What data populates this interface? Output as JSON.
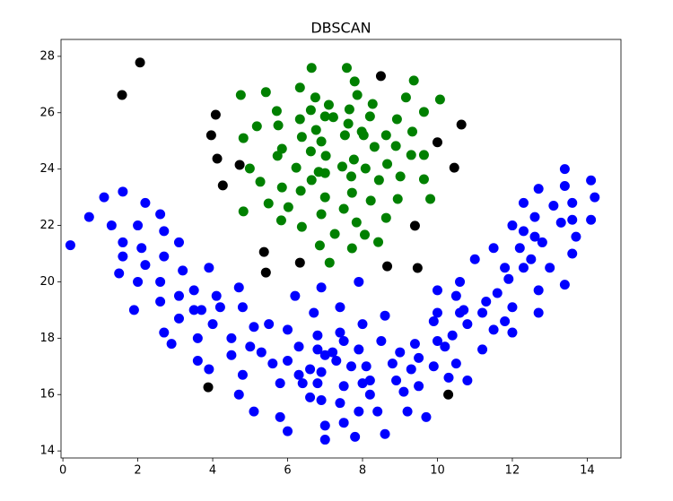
{
  "chart_data": {
    "type": "scatter",
    "title": "DBSCAN",
    "xlim": [
      -0.05,
      14.9
    ],
    "xticks": [
      0,
      2,
      4,
      6,
      8,
      10,
      12,
      14
    ],
    "ylim": [
      13.75,
      28.6
    ],
    "yticks": [
      14,
      16,
      18,
      20,
      22,
      24,
      26,
      28
    ],
    "grid": false,
    "series": [
      {
        "color": "#0000ff",
        "x": [
          0.7,
          1.1,
          1.6,
          2.2,
          2.6,
          1.3,
          2.0,
          0.2,
          1.6,
          2.1,
          2.7,
          1.6,
          2.2,
          2.7,
          3.1,
          1.5,
          2.0,
          2.6,
          3.2,
          3.9,
          1.9,
          2.6,
          3.1,
          3.5,
          4.1,
          4.7,
          3.7,
          4.2,
          4.8,
          2.7,
          3.1,
          3.5,
          4.0,
          2.9,
          3.6,
          4.5,
          4.5,
          3.6,
          3.9,
          5.1,
          5.5,
          5.0,
          5.3,
          4.8,
          4.7,
          5.1,
          5.8,
          5.8,
          6.0,
          6.0,
          6.3,
          6.6,
          6.8,
          6.2,
          6.9,
          6.7,
          6.0,
          5.6,
          6.3,
          6.8,
          7.5,
          7.4,
          7.4,
          8.0,
          7.9,
          7.9,
          8.1,
          8.6,
          8.8,
          8.5,
          8.9,
          8.2,
          9.1,
          9.4,
          9.3,
          9.5,
          9.0,
          8.4,
          8.6,
          9.5,
          9.2,
          9.7,
          9.9,
          10.0,
          10.2,
          10.0,
          9.9,
          10.3,
          10.5,
          10.4,
          10.6,
          10.5,
          10.6,
          10.0,
          10.8,
          10.8,
          11.2,
          11.5,
          11.6,
          11.3,
          11.2,
          10.7,
          11.0,
          11.5,
          11.8,
          12.0,
          11.8,
          11.9,
          12.3,
          12.2,
          12.0,
          12.3,
          12.3,
          12.5,
          12.6,
          12.6,
          12.7,
          12.7,
          12.8,
          12.7,
          13.0,
          13.1,
          13.3,
          13.6,
          13.4,
          13.4,
          14.1,
          14.2,
          13.6,
          13.7,
          13.6,
          14.1,
          13.4,
          6.8,
          6.9,
          6.9,
          7.5,
          7.5,
          7.0,
          7.0,
          7.4,
          7.8,
          8.0,
          7.7,
          7.3,
          7.2,
          7.0,
          6.6,
          6.4,
          7.9,
          8.2,
          12.0
        ],
        "y": [
          22.3,
          23.0,
          23.2,
          22.8,
          22.4,
          22.0,
          22.0,
          21.3,
          21.4,
          21.2,
          21.8,
          20.9,
          20.6,
          20.9,
          21.4,
          20.3,
          20.0,
          20.0,
          20.4,
          20.5,
          19.0,
          19.3,
          19.5,
          19.7,
          19.5,
          19.8,
          19.0,
          19.1,
          19.1,
          18.2,
          18.7,
          19.0,
          18.5,
          17.8,
          18.0,
          18.0,
          17.4,
          17.2,
          16.9,
          18.4,
          18.5,
          17.7,
          17.5,
          16.7,
          16.0,
          15.4,
          16.4,
          15.2,
          14.7,
          18.3,
          17.7,
          16.9,
          18.1,
          19.5,
          19.8,
          18.9,
          17.2,
          17.1,
          16.7,
          17.6,
          17.9,
          19.1,
          18.2,
          18.5,
          20.0,
          17.6,
          17.0,
          18.8,
          17.1,
          17.9,
          16.5,
          16.0,
          16.1,
          17.8,
          16.9,
          17.3,
          17.5,
          15.4,
          14.6,
          16.3,
          15.4,
          15.2,
          17.0,
          17.9,
          17.7,
          18.9,
          18.6,
          16.6,
          17.1,
          18.1,
          18.9,
          19.5,
          20.0,
          19.7,
          18.5,
          16.5,
          17.6,
          18.3,
          19.6,
          19.3,
          18.9,
          19.0,
          20.8,
          21.2,
          18.6,
          19.1,
          20.5,
          20.1,
          20.5,
          21.2,
          22.0,
          21.8,
          22.8,
          20.8,
          22.3,
          21.6,
          18.9,
          19.7,
          21.4,
          23.3,
          20.5,
          22.7,
          22.1,
          22.8,
          23.4,
          24.0,
          23.6,
          23.0,
          22.2,
          21.6,
          21.0,
          22.2,
          19.9,
          16.4,
          15.8,
          16.8,
          16.3,
          15.0,
          14.9,
          14.4,
          15.7,
          14.5,
          16.4,
          17.0,
          17.2,
          17.5,
          17.4,
          15.9,
          16.4,
          15.4,
          16.5,
          18.2
        ]
      },
      {
        "color": "#008000",
        "x": [
          6.64,
          7.58,
          9.37,
          6.33,
          7.79,
          4.75,
          5.42,
          6.74,
          7.86,
          9.16,
          10.07,
          7.1,
          8.27,
          5.71,
          9.64,
          6.62,
          7.65,
          6.33,
          7.0,
          7.22,
          8.2,
          8.92,
          5.18,
          5.75,
          6.76,
          7.62,
          7.98,
          9.33,
          4.82,
          6.38,
          6.9,
          7.53,
          8.03,
          8.63,
          5.85,
          6.62,
          8.32,
          8.89,
          9.3,
          5.73,
          7.02,
          7.77,
          9.64,
          5.27,
          4.99,
          6.23,
          6.83,
          7.46,
          8.08,
          8.66,
          5.85,
          6.64,
          7.0,
          7.7,
          8.44,
          9.01,
          9.64,
          6.35,
          7.0,
          7.72,
          8.22,
          9.81,
          8.94,
          5.49,
          6.02,
          7.5,
          6.9,
          8.63,
          4.82,
          5.83,
          7.84,
          6.38,
          7.26,
          8.06,
          6.86,
          7.72,
          8.42,
          7.12
        ],
        "y": [
          27.59,
          27.59,
          27.14,
          26.89,
          27.11,
          26.63,
          26.73,
          26.54,
          26.63,
          26.54,
          26.47,
          26.28,
          26.31,
          26.06,
          26.03,
          26.09,
          26.12,
          25.77,
          25.87,
          25.84,
          25.87,
          25.77,
          25.52,
          25.55,
          25.39,
          25.61,
          25.33,
          25.33,
          25.1,
          25.14,
          24.98,
          25.2,
          25.2,
          25.2,
          24.72,
          24.63,
          24.79,
          24.82,
          24.5,
          24.47,
          24.47,
          24.34,
          24.5,
          23.55,
          24.02,
          24.05,
          23.9,
          24.09,
          24.02,
          24.18,
          23.35,
          23.61,
          23.86,
          23.74,
          23.61,
          23.74,
          23.64,
          23.23,
          23.0,
          23.16,
          22.88,
          22.94,
          22.94,
          22.78,
          22.65,
          22.59,
          22.4,
          22.27,
          22.5,
          22.18,
          22.11,
          21.95,
          21.7,
          21.67,
          21.29,
          21.19,
          21.41,
          20.68
        ]
      },
      {
        "color": "#000000",
        "x": [
          2.06,
          1.58,
          4.08,
          3.96,
          4.12,
          4.72,
          4.27,
          8.49,
          10.64,
          10.0,
          10.45,
          9.4,
          5.37,
          5.42,
          6.33,
          8.66,
          9.47,
          3.88,
          10.29
        ],
        "y": [
          27.78,
          26.63,
          25.93,
          25.2,
          24.37,
          24.15,
          23.42,
          27.3,
          25.58,
          24.95,
          24.05,
          21.99,
          21.06,
          20.33,
          20.68,
          20.55,
          20.49,
          16.26,
          16.0
        ]
      }
    ]
  }
}
